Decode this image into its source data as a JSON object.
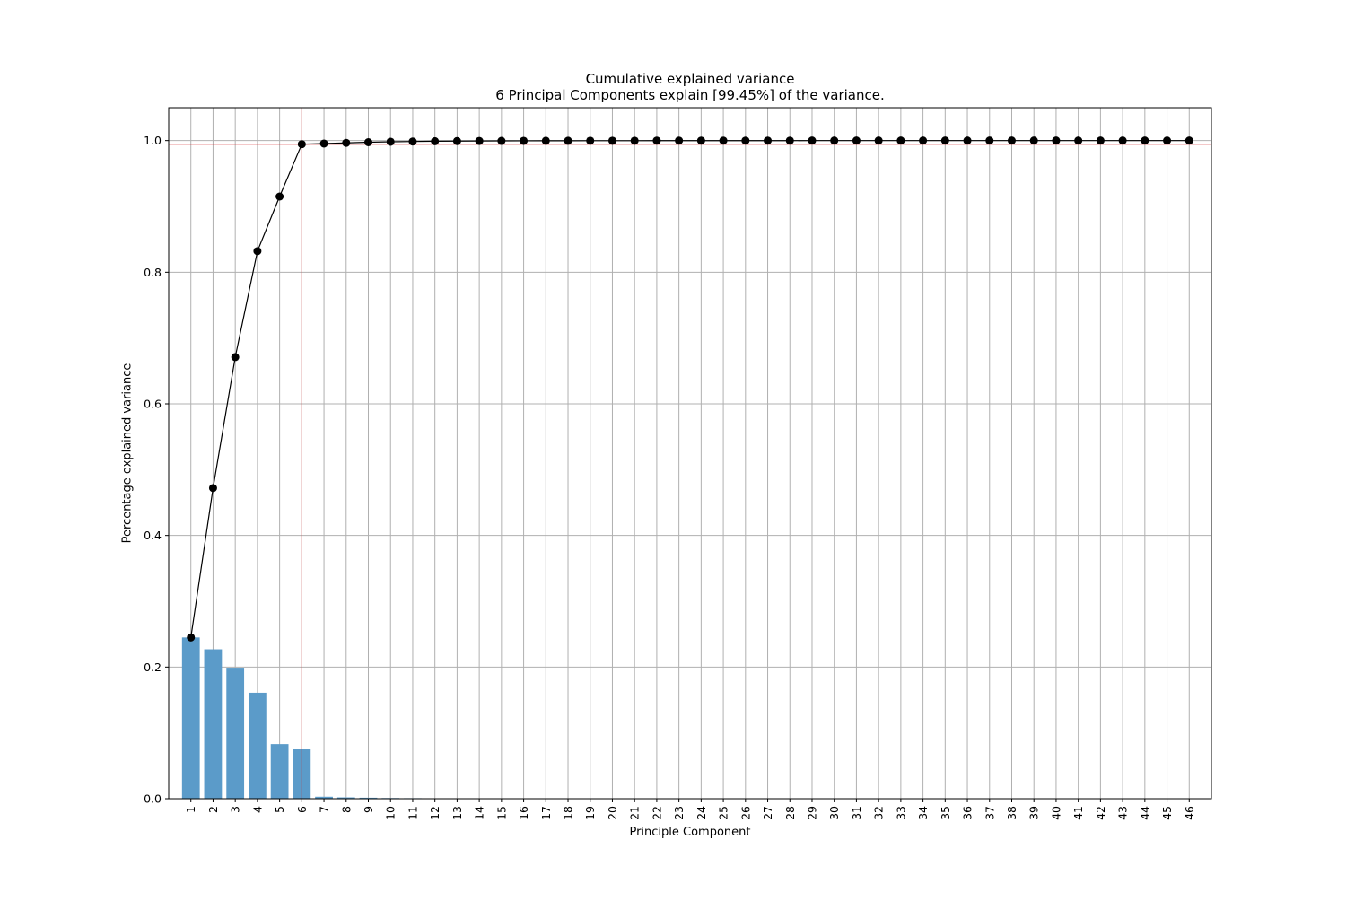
{
  "chart_data": {
    "type": "bar",
    "title": "Cumulative explained variance",
    "subtitle": "6 Principal Components explain [99.45%] of the variance.",
    "xlabel": "Principle Component",
    "ylabel": "Percentage explained variance",
    "ylim": [
      0,
      1.05
    ],
    "xlim": [
      0,
      47
    ],
    "yticks": [
      "0.0",
      "0.2",
      "0.4",
      "0.6",
      "0.8",
      "1.0"
    ],
    "grid": true,
    "categories": [
      "1",
      "2",
      "3",
      "4",
      "5",
      "6",
      "7",
      "8",
      "9",
      "10",
      "11",
      "12",
      "13",
      "14",
      "15",
      "16",
      "17",
      "18",
      "19",
      "20",
      "21",
      "22",
      "23",
      "24",
      "25",
      "26",
      "27",
      "28",
      "29",
      "30",
      "31",
      "32",
      "33",
      "34",
      "35",
      "36",
      "37",
      "38",
      "39",
      "40",
      "41",
      "42",
      "43",
      "44",
      "45",
      "46"
    ],
    "series": [
      {
        "type": "bar",
        "values": [
          0.245,
          0.227,
          0.199,
          0.161,
          0.083,
          0.075,
          0.003,
          0.002,
          0.0015,
          0.001,
          0.0008,
          0.0006,
          0.0005,
          0.0004,
          0.0004,
          0.0003,
          0.0003,
          0.0002,
          0.0002,
          0.0002,
          0.0001,
          0.0001,
          0.0001,
          0.0001,
          0.0001,
          0.0001,
          0.0001,
          0.0001,
          0,
          0,
          0,
          0,
          0,
          0,
          0,
          0,
          0,
          0,
          0,
          0,
          0,
          0,
          0,
          0,
          0,
          0
        ],
        "color": "#5b9bc9"
      },
      {
        "type": "line",
        "values": [
          0.245,
          0.472,
          0.671,
          0.832,
          0.915,
          0.9945,
          0.9955,
          0.9965,
          0.9975,
          0.9982,
          0.9986,
          0.999,
          0.9992,
          0.9994,
          0.9995,
          0.9996,
          0.9997,
          0.9997,
          0.9998,
          0.9998,
          0.9998,
          0.9999,
          0.9999,
          0.9999,
          0.9999,
          0.9999,
          0.9999,
          0.9999,
          1.0,
          1.0,
          1.0,
          1.0,
          1.0,
          1.0,
          1.0,
          1.0,
          1.0,
          1.0,
          1.0,
          1.0,
          1.0,
          1.0,
          1.0,
          1.0,
          1.0,
          1.0
        ],
        "color": "#000000"
      }
    ],
    "threshold": {
      "x": 6,
      "y": 0.9945,
      "color": "#d62728"
    }
  }
}
